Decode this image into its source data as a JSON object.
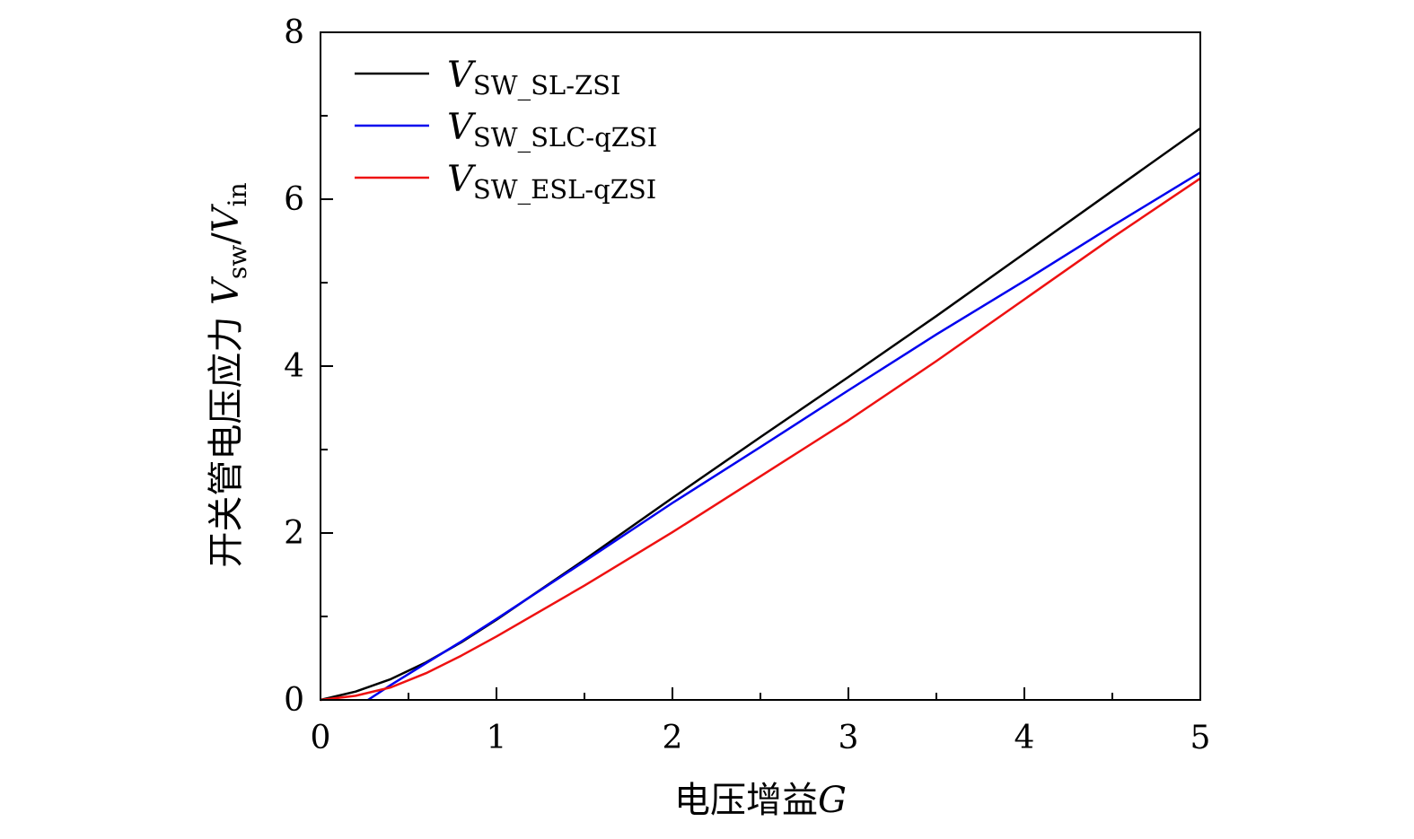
{
  "chart_data": {
    "type": "line",
    "title": "",
    "xlabel": "电压增益",
    "xlabel_symbol": "G",
    "ylabel": "开关管电压应力 ",
    "ylabel_main": "V",
    "ylabel_num_sub": "sw",
    "ylabel_sep": "/",
    "ylabel_den_sub": "in",
    "xlim": [
      0,
      5
    ],
    "ylim": [
      0,
      8
    ],
    "x_ticks": [
      0,
      1,
      2,
      3,
      4,
      5
    ],
    "y_ticks": [
      0,
      2,
      4,
      6,
      8
    ],
    "x_tick_labels": [
      "0",
      "1",
      "2",
      "3",
      "4",
      "5"
    ],
    "y_tick_labels": [
      "0",
      "2",
      "4",
      "6",
      "8"
    ],
    "legend_position": "top-left",
    "series": [
      {
        "name": "V_SW_SL-ZSI",
        "legend_symbol": "V",
        "legend_subscript": "SW_SL-ZSI",
        "color": "#000000",
        "x": [
          0,
          0.2,
          0.4,
          0.6,
          0.8,
          1.0,
          1.5,
          2.0,
          2.5,
          3.0,
          3.5,
          4.0,
          4.5,
          5.0
        ],
        "y": [
          0,
          0.1,
          0.25,
          0.45,
          0.69,
          0.96,
          1.68,
          2.42,
          3.15,
          3.87,
          4.6,
          5.35,
          6.1,
          6.85
        ]
      },
      {
        "name": "V_SW_SLC-qZSI",
        "legend_symbol": "V",
        "legend_subscript": "SW_SLC-qZSI",
        "color": "#0000ee",
        "x": [
          0.27,
          0.4,
          0.6,
          0.8,
          1.0,
          1.5,
          2.0,
          2.5,
          3.0,
          3.5,
          4.0,
          4.5,
          5.0
        ],
        "y": [
          0,
          0.18,
          0.44,
          0.7,
          0.97,
          1.66,
          2.36,
          3.03,
          3.71,
          4.38,
          5.02,
          5.68,
          6.32
        ]
      },
      {
        "name": "V_SW_ESL-qZSI",
        "legend_symbol": "V",
        "legend_subscript": "SW_ESL-qZSI",
        "color": "#ee1111",
        "x": [
          0,
          0.2,
          0.4,
          0.6,
          0.8,
          1.0,
          1.5,
          2.0,
          2.5,
          3.0,
          3.5,
          4.0,
          4.5,
          5.0
        ],
        "y": [
          0,
          0.05,
          0.15,
          0.32,
          0.53,
          0.76,
          1.37,
          2.01,
          2.68,
          3.35,
          4.06,
          4.8,
          5.54,
          6.25
        ]
      }
    ]
  }
}
